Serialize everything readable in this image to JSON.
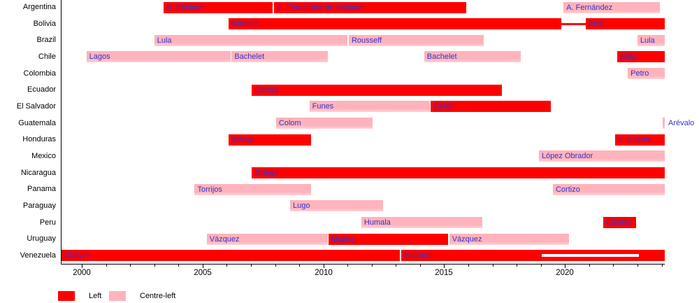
{
  "chart_data": {
    "type": "timeline",
    "x_axis": {
      "start": 1999.13,
      "end": 2024.13,
      "major_ticks": [
        2000,
        2005,
        2010,
        2015,
        2020
      ],
      "minor_tick_every_years": 1
    },
    "categories": [
      "Argentina",
      "Bolivia",
      "Brazil",
      "Chile",
      "Colombia",
      "Ecuador",
      "El Salvador",
      "Guatemala",
      "Honduras",
      "Mexico",
      "Nicaragua",
      "Panama",
      "Paraguay",
      "Peru",
      "Uruguay",
      "Venezuela"
    ],
    "colors": {
      "left": "#ff0000",
      "centre_left": "#ffb3bc",
      "bar_label": "#3333cc",
      "axis": "#000000"
    },
    "bars": [
      {
        "country": "Argentina",
        "label": "N. Kirchner",
        "group": "left",
        "start": 2003.38,
        "end": 2007.9
      },
      {
        "country": "Argentina",
        "label": "C. Fernández de Kirchner",
        "group": "left",
        "start": 2007.95,
        "end": 2015.92
      },
      {
        "country": "Argentina",
        "label": "A. Fernández",
        "group": "centre_left",
        "start": 2019.94,
        "end": 2023.94
      },
      {
        "country": "Bolivia",
        "label": "Morales",
        "group": "left",
        "start": 2006.06,
        "end": 2019.85
      },
      {
        "country": "Bolivia",
        "label": "Arce",
        "group": "left",
        "start": 2020.85,
        "end": 2024.13
      },
      {
        "country": "Brazil",
        "label": "Lula",
        "group": "centre_left",
        "start": 2003.0,
        "end": 2010.98
      },
      {
        "country": "Brazil",
        "label": "Rousseff",
        "group": "centre_left",
        "start": 2011.05,
        "end": 2016.65
      },
      {
        "country": "Brazil",
        "label": "Lula",
        "group": "centre_left",
        "start": 2023.0,
        "end": 2024.13
      },
      {
        "country": "Chile",
        "label": "Lagos",
        "group": "centre_left",
        "start": 2000.19,
        "end": 2006.15
      },
      {
        "country": "Chile",
        "label": "Bachelet",
        "group": "centre_left",
        "start": 2006.2,
        "end": 2010.17
      },
      {
        "country": "Chile",
        "label": "Bachelet",
        "group": "centre_left",
        "start": 2014.17,
        "end": 2018.17
      },
      {
        "country": "Chile",
        "label": "Boric",
        "group": "left",
        "start": 2022.17,
        "end": 2024.13
      },
      {
        "country": "Colombia",
        "label": "Petro",
        "group": "centre_left",
        "start": 2022.6,
        "end": 2024.13
      },
      {
        "country": "Ecuador",
        "label": "Correa",
        "group": "left",
        "start": 2007.04,
        "end": 2017.38
      },
      {
        "country": "El Salvador",
        "label": "Funes",
        "group": "centre_left",
        "start": 2009.42,
        "end": 2014.42
      },
      {
        "country": "El Salvador",
        "label": "Cerén",
        "group": "left",
        "start": 2014.45,
        "end": 2019.42
      },
      {
        "country": "Guatemala",
        "label": "Colom",
        "group": "centre_left",
        "start": 2008.04,
        "end": 2012.04
      },
      {
        "country": "Guatemala",
        "label": "Arévalo",
        "group": "centre_left",
        "start": 2024.04,
        "end": 2024.13,
        "label_outside": true
      },
      {
        "country": "Honduras",
        "label": "Zelaya",
        "group": "left",
        "start": 2006.07,
        "end": 2009.49
      },
      {
        "country": "Honduras",
        "label": "X. Castro",
        "group": "left",
        "start": 2022.07,
        "end": 2024.13
      },
      {
        "country": "Mexico",
        "label": "López Obrador",
        "group": "centre_left",
        "start": 2018.92,
        "end": 2024.13
      },
      {
        "country": "Nicaragua",
        "label": "Ortega",
        "group": "left",
        "start": 2007.04,
        "end": 2024.13
      },
      {
        "country": "Panama",
        "label": "Torrijos",
        "group": "centre_left",
        "start": 2004.67,
        "end": 2009.5
      },
      {
        "country": "Panama",
        "label": "Cortizo",
        "group": "centre_left",
        "start": 2019.5,
        "end": 2024.13
      },
      {
        "country": "Paraguay",
        "label": "Lugo",
        "group": "centre_left",
        "start": 2008.62,
        "end": 2012.47
      },
      {
        "country": "Peru",
        "label": "Humala",
        "group": "centre_left",
        "start": 2011.57,
        "end": 2016.57
      },
      {
        "country": "Peru",
        "label": "Castillo",
        "group": "left",
        "start": 2021.57,
        "end": 2022.93
      },
      {
        "country": "Uruguay",
        "label": "Vázquez",
        "group": "centre_left",
        "start": 2005.17,
        "end": 2010.17
      },
      {
        "country": "Uruguay",
        "label": "Mujica",
        "group": "left",
        "start": 2010.21,
        "end": 2015.17
      },
      {
        "country": "Uruguay",
        "label": "Vázquez",
        "group": "centre_left",
        "start": 2015.21,
        "end": 2020.17
      },
      {
        "country": "Venezuela",
        "label": "Chávez",
        "group": "left",
        "start": 1999.16,
        "end": 2013.17
      },
      {
        "country": "Venezuela",
        "label": "Maduro",
        "group": "left",
        "start": 2013.22,
        "end": 2024.13
      }
    ],
    "annotations": [
      {
        "name": "bolivia-interim-gap-connector",
        "type": "connector",
        "country": "Bolivia",
        "start": 2019.85,
        "end": 2020.85,
        "color": "#ff0000",
        "thickness": 3
      },
      {
        "name": "venezuela-disputed-presidency-stripe",
        "type": "stripe",
        "country": "Venezuela",
        "start": 2019.05,
        "end": 2023.05,
        "color": "#ffffff",
        "thickness": 4
      }
    ],
    "legend": [
      {
        "label": "Left",
        "group": "left"
      },
      {
        "label": "Centre-left",
        "group": "centre_left"
      }
    ]
  }
}
